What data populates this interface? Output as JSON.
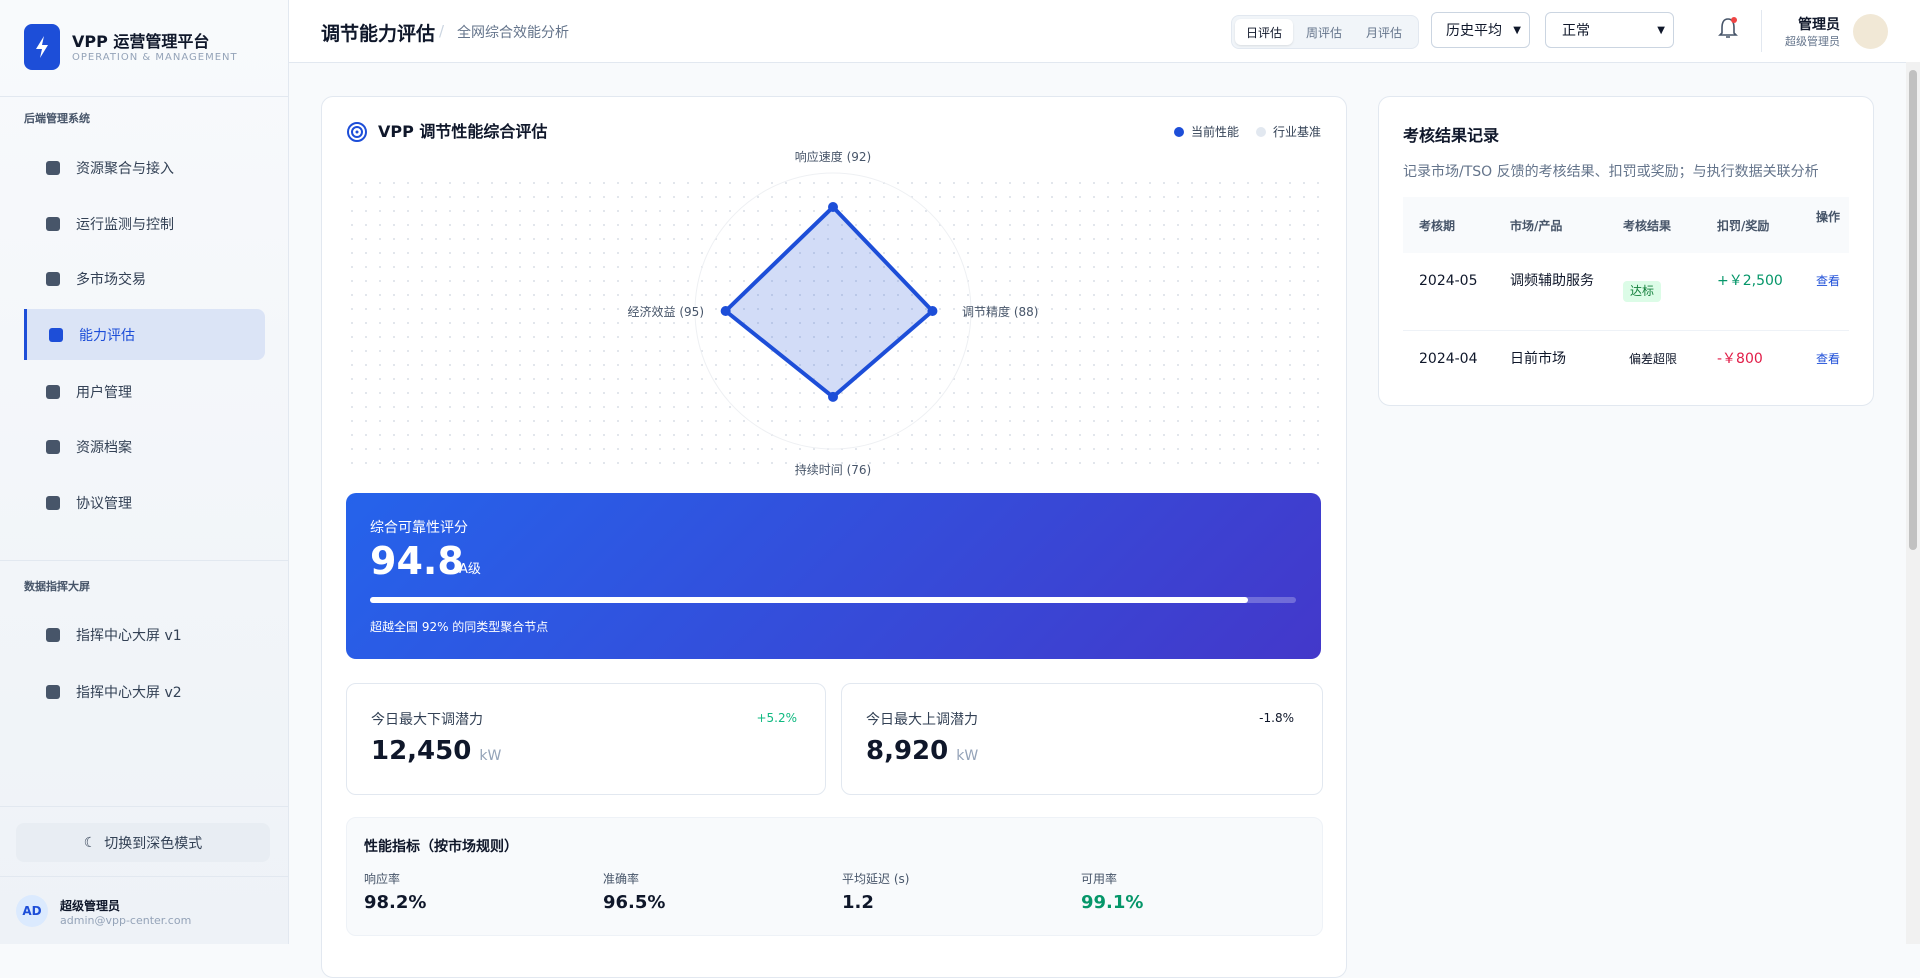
{
  "sidebar": {
    "brand": "VPP 运营管理平台",
    "brand_sub": "OPERATION & MANAGEMENT",
    "section1": "后端管理系统",
    "menu1": [
      "资源聚合与接入",
      "运行监测与控制",
      "多市场交易",
      "能力评估",
      "用户管理",
      "资源档案",
      "协议管理"
    ],
    "section2": "数据指挥大屏",
    "menu2": [
      "指挥中心大屏 v1",
      "指挥中心大屏 v2"
    ],
    "dark_mode": "切换到深色模式",
    "user": {
      "avatar": "AD",
      "name": "超级管理员",
      "email": "admin@vpp-center.com"
    }
  },
  "header": {
    "title": "调节能力评估",
    "separator": "/",
    "subtitle": "全网综合效能分析",
    "tabs": [
      "日评估",
      "周评估",
      "月评估"
    ],
    "select1": "历史平均",
    "select2": "正常",
    "user_name": "管理员",
    "user_role": "超级管理员"
  },
  "chart_data": {
    "type": "radar",
    "title": "VPP 调节性能综合评估",
    "categories": [
      "响应速度 (92)",
      "调节精度 (88)",
      "持续时间 (76)",
      "经济效益 (95)"
    ],
    "series": [
      {
        "name": "当前性能",
        "color": "#1d4ed8",
        "values": [
          92,
          88,
          76,
          95
        ]
      }
    ],
    "benchmark_legend": {
      "name": "行业基准",
      "color": "#e2e8f0"
    },
    "rlim": [
      0,
      100
    ]
  },
  "score": {
    "label": "综合可靠性评分",
    "value": 94.8,
    "grade": "A级",
    "note": "超越全国 92% 的同类型聚合节点",
    "ylim": [
      0,
      100
    ]
  },
  "kpis": [
    {
      "label": "今日最大下调潜力",
      "value": "12,450",
      "unit": "kW",
      "change": "+5.2%"
    },
    {
      "label": "今日最大上调潜力",
      "value": "8,920",
      "unit": "kW",
      "change": "-1.8%"
    }
  ],
  "metrics": {
    "title": "性能指标（按市场规则）",
    "items": [
      {
        "label": "响应率",
        "value": "98.2%"
      },
      {
        "label": "准确率",
        "value": "96.5%"
      },
      {
        "label": "平均延迟 (s)",
        "value": "1.2"
      },
      {
        "label": "可用率",
        "value": "99.1%"
      }
    ]
  },
  "records": {
    "title": "考核结果记录",
    "description": "记录市场/TSO 反馈的考核结果、扣罚或奖励；与执行数据关联分析",
    "headers": [
      "考核期",
      "市场/产品",
      "考核结果",
      "扣罚/奖励",
      "操作"
    ],
    "rows": [
      [
        "2024-05",
        "调频辅助服务",
        "达标",
        "+￥2,500",
        "查看"
      ],
      [
        "2024-04",
        "日前市场",
        "偏差超限",
        "-￥800",
        "查看"
      ]
    ]
  }
}
